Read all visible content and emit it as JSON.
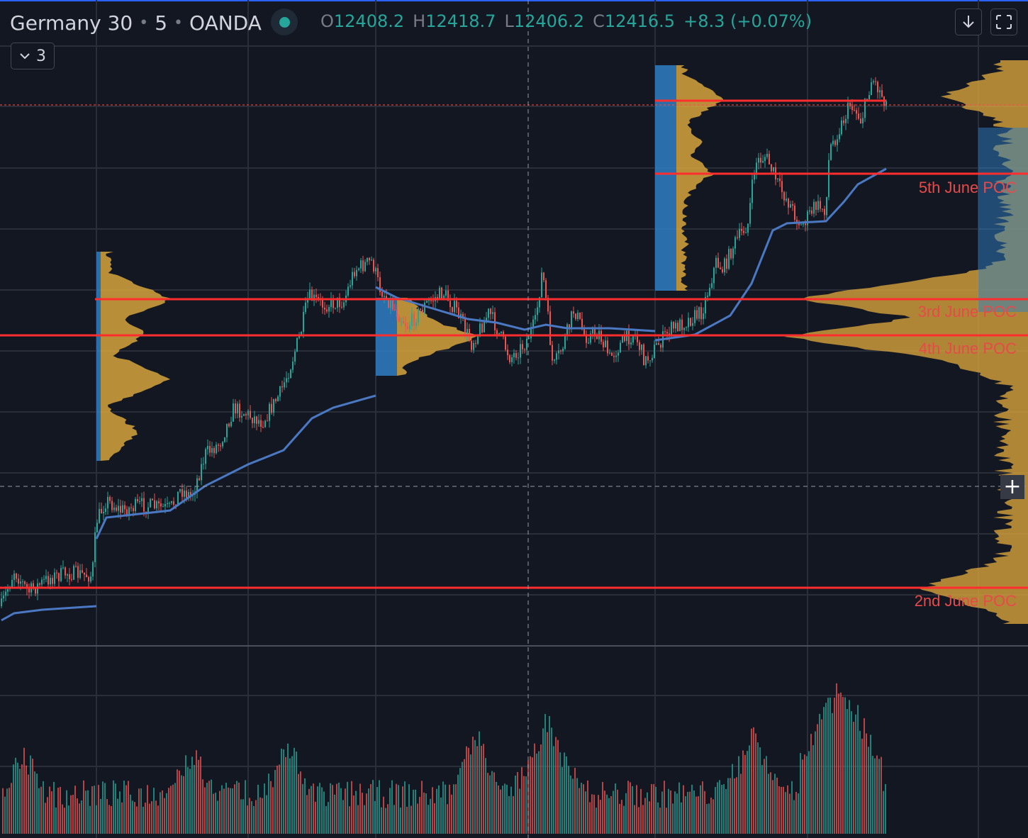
{
  "header": {
    "symbol": "Germany 30",
    "interval": "5",
    "broker": "OANDA",
    "open_label": "O",
    "open": "12408.2",
    "high_label": "H",
    "high": "12418.7",
    "low_label": "L",
    "low": "12406.2",
    "close_label": "C",
    "close": "12416.5",
    "change": "+8.3 (+0.07%)",
    "indicators_count": "3"
  },
  "colors": {
    "background": "#131722",
    "grid": "#2a2e39",
    "up": "#26a69a",
    "down": "#ef5350",
    "vwap": "#4a78c2",
    "profile_blue": "#2f7fc4",
    "profile_gold": "#d6a33c",
    "poc": "#ff2d2d",
    "poc_label": "#e84a4a"
  },
  "icons": [
    "live-status-icon",
    "chevron-down-icon",
    "download-arrow-icon",
    "fullscreen-icon",
    "crosshair-plus-icon"
  ],
  "poc_labels": {
    "june5": "5th June POC",
    "june3": "3rd June POC",
    "june4": "4th June POC",
    "june2": "2nd June POC"
  },
  "chart_data": {
    "type": "candlestick",
    "instrument": "Germany 30",
    "timeframe": "5",
    "sessions": [
      "2nd June",
      "3rd June",
      "4th June",
      "5th June"
    ],
    "poc_levels": [
      {
        "label": "5th June POC"
      },
      {
        "label": "3rd June POC"
      },
      {
        "label": "4th June POC"
      },
      {
        "label": "2nd June POC"
      }
    ],
    "last_price": {
      "open": 12408.2,
      "high": 12418.7,
      "low": 12406.2,
      "close": 12416.5,
      "change": 8.3,
      "change_pct": 0.07
    },
    "panes": [
      "price",
      "volume"
    ],
    "grid": true,
    "legend": "top-left"
  }
}
